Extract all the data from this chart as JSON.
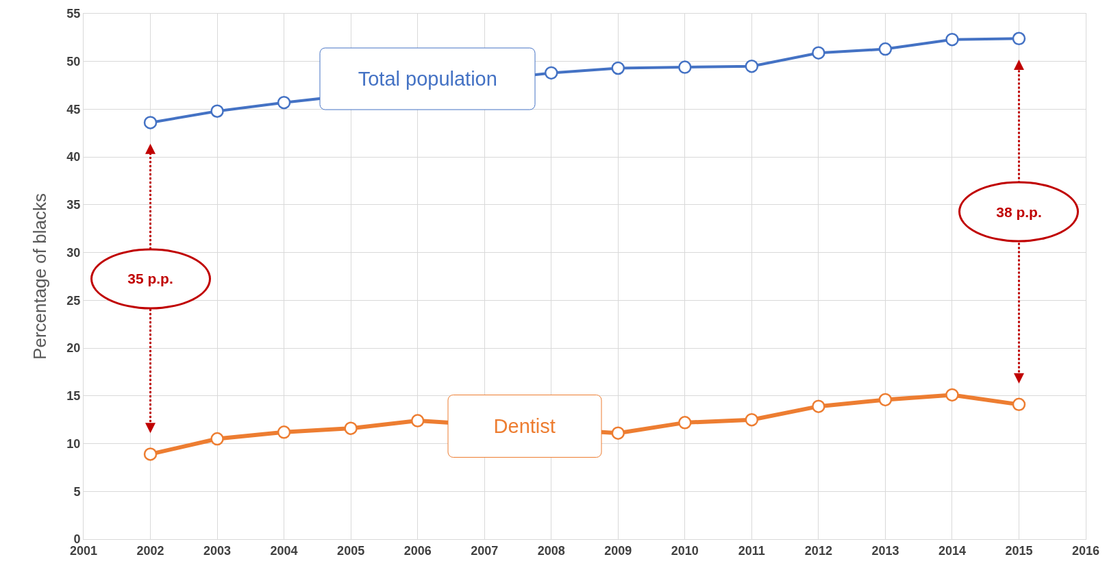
{
  "chart_data": {
    "type": "line",
    "ylabel": "Percentage of blacks",
    "x": [
      2002,
      2003,
      2004,
      2005,
      2006,
      2007,
      2008,
      2009,
      2010,
      2011,
      2012,
      2013,
      2014,
      2015
    ],
    "series": [
      {
        "name": "Total population",
        "color": "#4472c4",
        "values": [
          43.6,
          44.8,
          45.7,
          null,
          null,
          null,
          48.8,
          49.3,
          49.4,
          49.5,
          50.9,
          51.3,
          52.3,
          52.4
        ]
      },
      {
        "name": "Dentist",
        "color": "#ed7d31",
        "values": [
          8.9,
          10.5,
          11.2,
          11.6,
          12.4,
          null,
          null,
          11.1,
          12.2,
          12.5,
          13.9,
          14.6,
          15.1,
          14.1
        ]
      }
    ],
    "xlim": [
      2001,
      2016
    ],
    "xticks": [
      2001,
      2002,
      2003,
      2004,
      2005,
      2006,
      2007,
      2008,
      2009,
      2010,
      2011,
      2012,
      2013,
      2014,
      2015,
      2016
    ],
    "ylim": [
      0,
      55
    ],
    "yticks": [
      0,
      5,
      10,
      15,
      20,
      25,
      30,
      35,
      40,
      45,
      50,
      55
    ],
    "grid": true,
    "legend": false,
    "marker": "circle",
    "line_style": "solid",
    "annotations": [
      "35 p.p.",
      "38 p.p."
    ]
  }
}
